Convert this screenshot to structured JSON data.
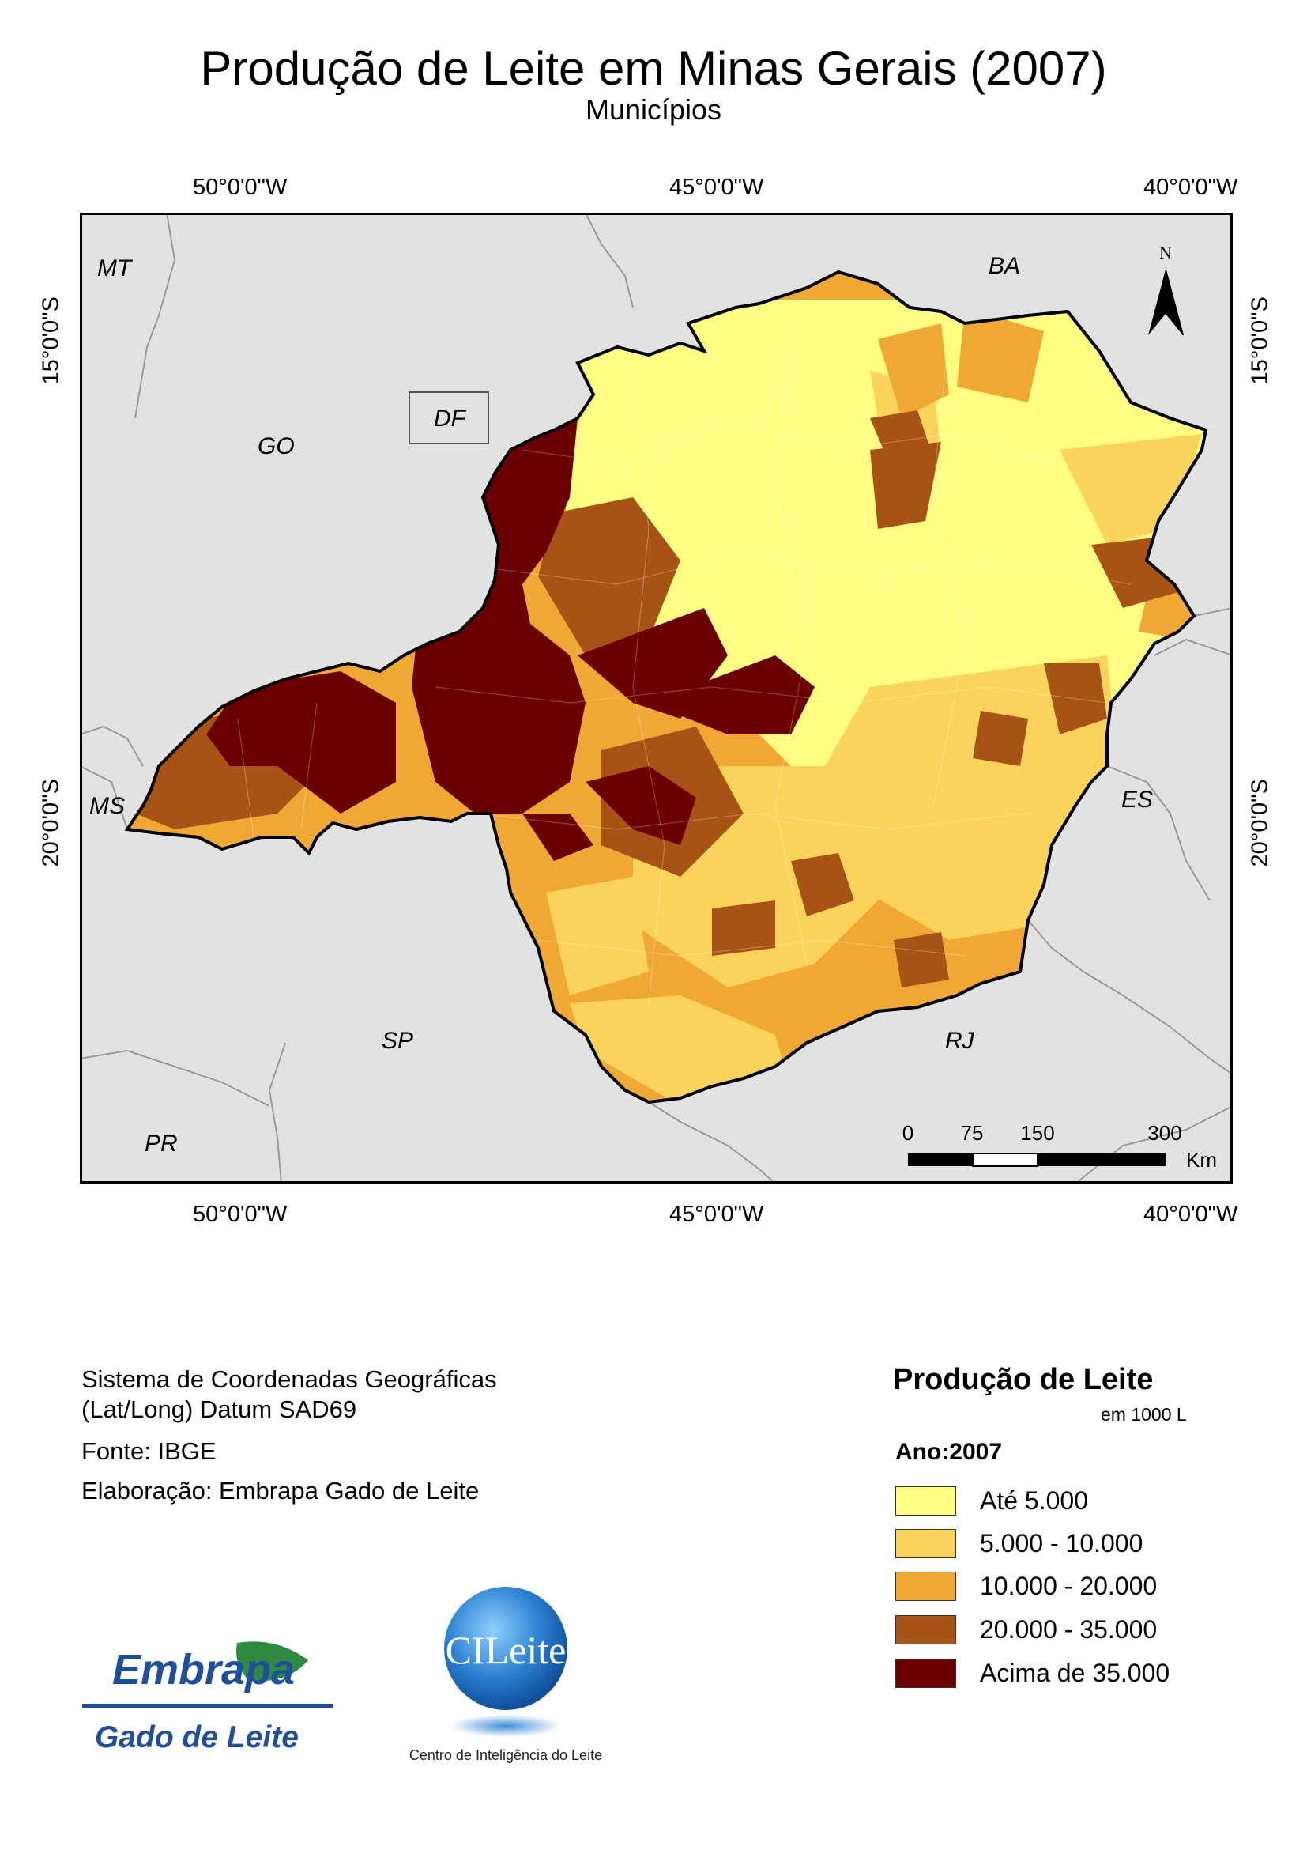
{
  "title": "Produção de Leite em Minas Gerais (2007)",
  "subtitle": "Municípios",
  "coords": {
    "top": [
      "50°0'0\"W",
      "45°0'0\"W",
      "40°0'0\"W"
    ],
    "bottom": [
      "50°0'0\"W",
      "45°0'0\"W",
      "40°0'0\"W"
    ],
    "left": [
      "15°0'0\"S",
      "20°0'0\"S"
    ],
    "right": [
      "15°0'0\"S",
      "20°0'0\"S"
    ]
  },
  "states": {
    "mt": "MT",
    "go": "GO",
    "df": "DF",
    "ba": "BA",
    "ms": "MS",
    "es": "ES",
    "sp": "SP",
    "rj": "RJ",
    "pr": "PR"
  },
  "north": "N",
  "scale_bar": {
    "labels": [
      "0",
      "75",
      "150",
      "300"
    ],
    "unit": "Km"
  },
  "info": {
    "crs_line1": "Sistema de Coordenadas Geográficas",
    "crs_line2": "(Lat/Long) Datum SAD69",
    "source": "Fonte: IBGE",
    "author": "Elaboração: Embrapa Gado de Leite"
  },
  "legend": {
    "title": "Produção de Leite",
    "unit": "em 1000 L",
    "year": "Ano:2007",
    "classes": [
      {
        "label": "Até 5.000",
        "color": "#fffe83"
      },
      {
        "label": "5.000 - 10.000",
        "color": "#fad45a"
      },
      {
        "label": "10.000 - 20.000",
        "color": "#f0a835"
      },
      {
        "label": "20.000 - 35.000",
        "color": "#a85315"
      },
      {
        "label": "Acima de 35.000",
        "color": "#6b0000"
      }
    ]
  },
  "logos": {
    "embrapa_name": "Embrapa",
    "embrapa_unit": "Gado de Leite",
    "cileite_name": "CILeite",
    "cileite_caption": "Centro de Inteligência do Leite"
  },
  "colors": {
    "background_states": "#e2e2e2",
    "border": "#000000",
    "state_lines": "#9a9a9a"
  }
}
